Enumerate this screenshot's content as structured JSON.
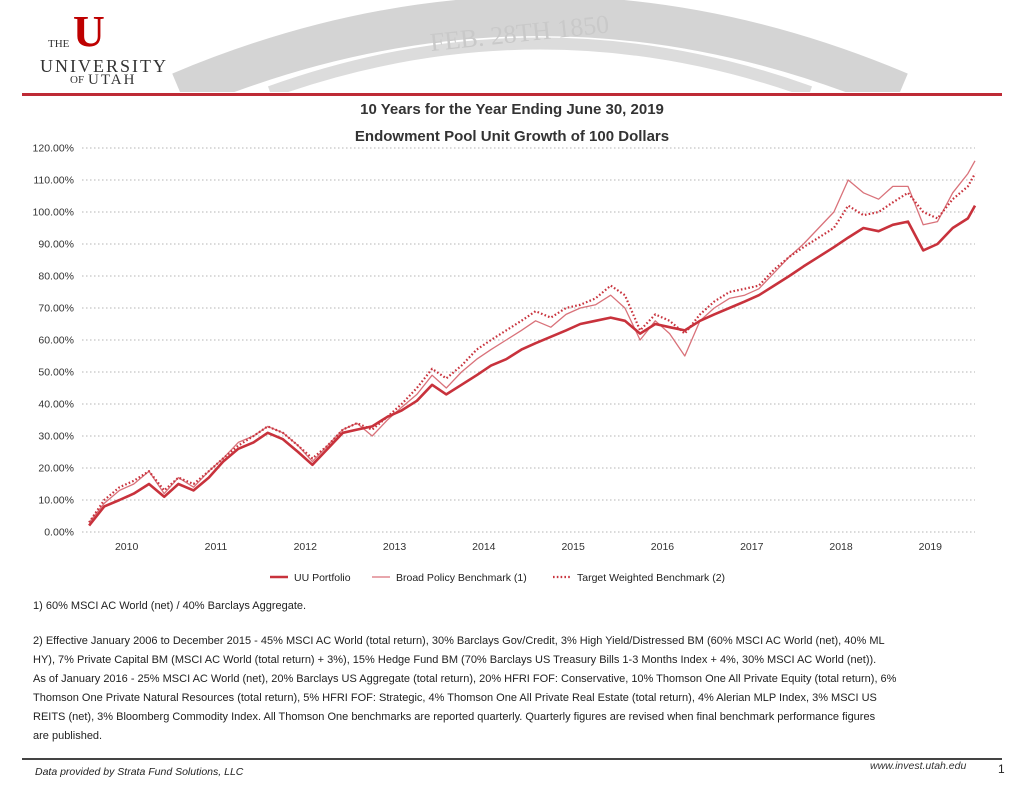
{
  "logo": {
    "the": "THE",
    "u": "U",
    "university": "UNIVERSITY",
    "of": "OF",
    "utah": "UTAH"
  },
  "seal": {
    "date_text": "FEB. 28TH 1850"
  },
  "title_line1": "10 Years for the Year Ending June 30, 2019",
  "title_line2": "Endowment Pool Unit Growth of 100 Dollars",
  "chart_data": {
    "type": "line",
    "title": "Endowment Pool Unit Growth of 100 Dollars",
    "ylim": [
      0,
      120
    ],
    "xlim": [
      2009.5,
      2019.5
    ],
    "y_ticks": [
      0,
      10,
      20,
      30,
      40,
      50,
      60,
      70,
      80,
      90,
      100,
      110,
      120
    ],
    "y_tick_labels": [
      "0.00%",
      "10.00%",
      "20.00%",
      "30.00%",
      "40.00%",
      "50.00%",
      "60.00%",
      "70.00%",
      "80.00%",
      "90.00%",
      "100.00%",
      "110.00%",
      "120.00%"
    ],
    "x_ticks": [
      2010,
      2011,
      2012,
      2013,
      2014,
      2015,
      2016,
      2017,
      2018,
      2019
    ],
    "x_tick_labels": [
      "2010",
      "2011",
      "2012",
      "2013",
      "2014",
      "2015",
      "2016",
      "2017",
      "2018",
      "2019"
    ],
    "grid": "horizontal dotted",
    "legend_position": "bottom",
    "series": [
      {
        "name": "UU Portfolio",
        "color": "#c8323c",
        "style": "solid-thick",
        "points": [
          [
            2009.58,
            2
          ],
          [
            2009.75,
            8
          ],
          [
            2009.92,
            10
          ],
          [
            2010.08,
            12
          ],
          [
            2010.25,
            15
          ],
          [
            2010.42,
            11
          ],
          [
            2010.58,
            15
          ],
          [
            2010.75,
            13
          ],
          [
            2010.92,
            17
          ],
          [
            2011.08,
            22
          ],
          [
            2011.25,
            26
          ],
          [
            2011.42,
            28
          ],
          [
            2011.58,
            31
          ],
          [
            2011.75,
            29
          ],
          [
            2011.92,
            25
          ],
          [
            2012.08,
            21
          ],
          [
            2012.25,
            26
          ],
          [
            2012.42,
            31
          ],
          [
            2012.58,
            32
          ],
          [
            2012.75,
            33
          ],
          [
            2012.92,
            36
          ],
          [
            2013.08,
            38
          ],
          [
            2013.25,
            41
          ],
          [
            2013.42,
            46
          ],
          [
            2013.58,
            43
          ],
          [
            2013.75,
            46
          ],
          [
            2013.92,
            49
          ],
          [
            2014.08,
            52
          ],
          [
            2014.25,
            54
          ],
          [
            2014.42,
            57
          ],
          [
            2014.58,
            59
          ],
          [
            2014.75,
            61
          ],
          [
            2014.92,
            63
          ],
          [
            2015.08,
            65
          ],
          [
            2015.25,
            66
          ],
          [
            2015.42,
            67
          ],
          [
            2015.58,
            66
          ],
          [
            2015.75,
            62
          ],
          [
            2015.92,
            65
          ],
          [
            2016.08,
            64
          ],
          [
            2016.25,
            63
          ],
          [
            2016.42,
            66
          ],
          [
            2016.58,
            68
          ],
          [
            2016.75,
            70
          ],
          [
            2016.92,
            72
          ],
          [
            2017.08,
            74
          ],
          [
            2017.25,
            77
          ],
          [
            2017.42,
            80
          ],
          [
            2017.58,
            83
          ],
          [
            2017.75,
            86
          ],
          [
            2017.92,
            89
          ],
          [
            2018.08,
            92
          ],
          [
            2018.25,
            95
          ],
          [
            2018.42,
            94
          ],
          [
            2018.58,
            96
          ],
          [
            2018.75,
            97
          ],
          [
            2018.92,
            88
          ],
          [
            2019.08,
            90
          ],
          [
            2019.25,
            95
          ],
          [
            2019.42,
            98
          ],
          [
            2019.5,
            102
          ]
        ]
      },
      {
        "name": "Broad Policy Benchmark (1)",
        "color": "#d9727a",
        "style": "solid-thin",
        "points": [
          [
            2009.58,
            3
          ],
          [
            2009.75,
            9
          ],
          [
            2009.92,
            13
          ],
          [
            2010.08,
            15
          ],
          [
            2010.25,
            19
          ],
          [
            2010.42,
            12
          ],
          [
            2010.58,
            17
          ],
          [
            2010.75,
            14
          ],
          [
            2010.92,
            19
          ],
          [
            2011.08,
            23
          ],
          [
            2011.25,
            28
          ],
          [
            2011.42,
            30
          ],
          [
            2011.58,
            33
          ],
          [
            2011.75,
            31
          ],
          [
            2011.92,
            27
          ],
          [
            2012.08,
            22
          ],
          [
            2012.25,
            27
          ],
          [
            2012.42,
            32
          ],
          [
            2012.58,
            34
          ],
          [
            2012.75,
            30
          ],
          [
            2012.92,
            35
          ],
          [
            2013.08,
            39
          ],
          [
            2013.25,
            43
          ],
          [
            2013.42,
            49
          ],
          [
            2013.58,
            45
          ],
          [
            2013.75,
            50
          ],
          [
            2013.92,
            54
          ],
          [
            2014.08,
            57
          ],
          [
            2014.25,
            60
          ],
          [
            2014.42,
            63
          ],
          [
            2014.58,
            66
          ],
          [
            2014.75,
            64
          ],
          [
            2014.92,
            68
          ],
          [
            2015.08,
            70
          ],
          [
            2015.25,
            71
          ],
          [
            2015.42,
            74
          ],
          [
            2015.58,
            70
          ],
          [
            2015.75,
            60
          ],
          [
            2015.92,
            66
          ],
          [
            2016.08,
            62
          ],
          [
            2016.25,
            55
          ],
          [
            2016.42,
            66
          ],
          [
            2016.58,
            70
          ],
          [
            2016.75,
            73
          ],
          [
            2016.92,
            74
          ],
          [
            2017.08,
            76
          ],
          [
            2017.25,
            81
          ],
          [
            2017.42,
            86
          ],
          [
            2017.58,
            90
          ],
          [
            2017.75,
            95
          ],
          [
            2017.92,
            100
          ],
          [
            2018.08,
            110
          ],
          [
            2018.25,
            106
          ],
          [
            2018.42,
            104
          ],
          [
            2018.58,
            108
          ],
          [
            2018.75,
            108
          ],
          [
            2018.92,
            96
          ],
          [
            2019.08,
            97
          ],
          [
            2019.25,
            106
          ],
          [
            2019.42,
            112
          ],
          [
            2019.5,
            116
          ]
        ]
      },
      {
        "name": "Target Weighted Benchmark (2)",
        "color": "#c8323c",
        "style": "dotted",
        "points": [
          [
            2009.58,
            3
          ],
          [
            2009.75,
            10
          ],
          [
            2009.92,
            14
          ],
          [
            2010.08,
            16
          ],
          [
            2010.25,
            19
          ],
          [
            2010.42,
            13
          ],
          [
            2010.58,
            17
          ],
          [
            2010.75,
            15
          ],
          [
            2010.92,
            19
          ],
          [
            2011.08,
            23
          ],
          [
            2011.25,
            27
          ],
          [
            2011.42,
            30
          ],
          [
            2011.58,
            33
          ],
          [
            2011.75,
            31
          ],
          [
            2011.92,
            27
          ],
          [
            2012.08,
            23
          ],
          [
            2012.25,
            27
          ],
          [
            2012.42,
            32
          ],
          [
            2012.58,
            34
          ],
          [
            2012.75,
            32
          ],
          [
            2012.92,
            36
          ],
          [
            2013.08,
            40
          ],
          [
            2013.25,
            45
          ],
          [
            2013.42,
            51
          ],
          [
            2013.58,
            48
          ],
          [
            2013.75,
            52
          ],
          [
            2013.92,
            57
          ],
          [
            2014.08,
            60
          ],
          [
            2014.25,
            63
          ],
          [
            2014.42,
            66
          ],
          [
            2014.58,
            69
          ],
          [
            2014.75,
            67
          ],
          [
            2014.92,
            70
          ],
          [
            2015.08,
            71
          ],
          [
            2015.25,
            73
          ],
          [
            2015.42,
            77
          ],
          [
            2015.58,
            74
          ],
          [
            2015.75,
            63
          ],
          [
            2015.92,
            68
          ],
          [
            2016.08,
            66
          ],
          [
            2016.25,
            62
          ],
          [
            2016.42,
            68
          ],
          [
            2016.58,
            72
          ],
          [
            2016.75,
            75
          ],
          [
            2016.92,
            76
          ],
          [
            2017.08,
            77
          ],
          [
            2017.25,
            82
          ],
          [
            2017.42,
            86
          ],
          [
            2017.58,
            89
          ],
          [
            2017.75,
            92
          ],
          [
            2017.92,
            95
          ],
          [
            2018.08,
            102
          ],
          [
            2018.25,
            99
          ],
          [
            2018.42,
            100
          ],
          [
            2018.58,
            103
          ],
          [
            2018.75,
            106
          ],
          [
            2018.92,
            100
          ],
          [
            2019.08,
            98
          ],
          [
            2019.25,
            104
          ],
          [
            2019.42,
            108
          ],
          [
            2019.5,
            112
          ]
        ]
      }
    ]
  },
  "notes": {
    "note1": "1) 60% MSCI AC World (net) / 40% Barclays Aggregate.",
    "note2_lines": [
      "2) Effective January 2006 to December 2015 - 45% MSCI AC World (total return), 30% Barclays Gov/Credit, 3% High Yield/Distressed BM (60% MSCI AC World (net), 40% ML",
      "HY), 7% Private Capital BM (MSCI AC World (total return) + 3%), 15% Hedge Fund BM (70% Barclays US Treasury Bills 1-3 Months Index + 4%, 30% MSCI AC World (net)).",
      "As of January 2016 - 25% MSCI AC World (net), 20% Barclays US Aggregate (total return), 20% HFRI FOF: Conservative, 10% Thomson One All Private Equity (total return), 6%",
      "Thomson One Private Natural Resources (total return), 5% HFRI FOF: Strategic, 4% Thomson One All Private Real Estate (total return), 4% Alerian MLP Index, 3% MSCI US",
      "REITS (net), 3% Bloomberg Commodity Index. All Thomson One benchmarks are reported quarterly. Quarterly figures are revised when final benchmark performance figures",
      "are published."
    ]
  },
  "footer": {
    "left": "Data provided by Strata Fund Solutions, LLC",
    "right": "www.invest.utah.edu",
    "page": "1"
  }
}
